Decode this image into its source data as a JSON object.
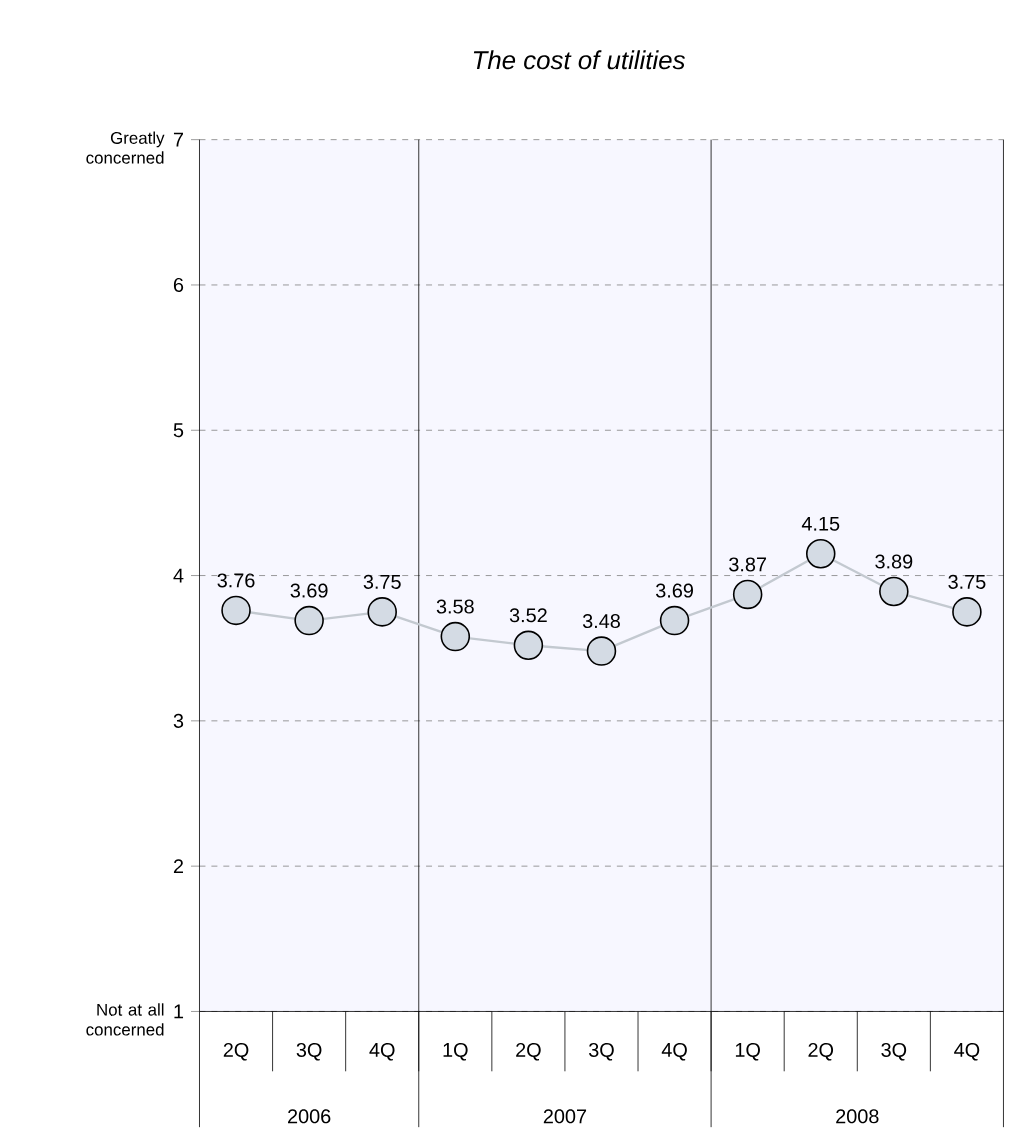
{
  "chart_data": {
    "type": "line",
    "title": "*The cost of utilities*",
    "categories": [
      "2Q",
      "3Q",
      "4Q",
      "1Q",
      "2Q",
      "3Q",
      "4Q",
      "1Q",
      "2Q",
      "3Q",
      "4Q"
    ],
    "series": [
      {
        "color": "#d4dbe4",
        "values": [
          3.76,
          3.69,
          3.75,
          3.58,
          3.52,
          3.48,
          3.69,
          3.87,
          4.15,
          3.89,
          3.75
        ]
      }
    ],
    "ylim": [
      1,
      7
    ],
    "yticks": [
      1,
      2,
      3,
      4,
      5,
      6,
      7
    ],
    "grid": "y",
    "marker": "circle",
    "data_labels": true,
    "annotations": [
      "Not at all concerned",
      "Greatly concerned",
      "2006",
      "2007",
      "2008"
    ]
  }
}
